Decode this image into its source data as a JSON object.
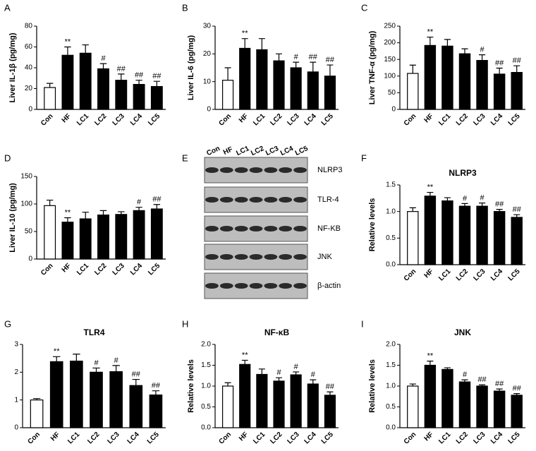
{
  "chart_data": [
    {
      "type": "bar",
      "panel": "A",
      "y_label": "Liver IL-1β (pg/mg)",
      "categories": [
        "Con",
        "HF",
        "LC1",
        "LC2",
        "LC3",
        "LC4",
        "LC5"
      ],
      "values": [
        21,
        52,
        54,
        39,
        28,
        24,
        22
      ],
      "errors": [
        4,
        8,
        8,
        5,
        6,
        4,
        5
      ],
      "annotations": [
        null,
        "**",
        null,
        "#",
        "##",
        "##",
        "##"
      ],
      "colors": [
        "#ffffff",
        "#000000",
        "#000000",
        "#000000",
        "#000000",
        "#000000",
        "#000000"
      ],
      "ylim": [
        0,
        80
      ],
      "yticks": [
        0,
        20,
        40,
        60,
        80
      ]
    },
    {
      "type": "bar",
      "panel": "B",
      "y_label": "Liver IL-6 (pg/mg)",
      "categories": [
        "Con",
        "HF",
        "LC1",
        "LC2",
        "LC3",
        "LC4",
        "LC5"
      ],
      "values": [
        10.5,
        22,
        21.5,
        17.5,
        15,
        13.5,
        12
      ],
      "errors": [
        4.5,
        3.5,
        4,
        2.5,
        2,
        3.5,
        4
      ],
      "annotations": [
        null,
        "**",
        null,
        null,
        "#",
        "##",
        "##"
      ],
      "colors": [
        "#ffffff",
        "#000000",
        "#000000",
        "#000000",
        "#000000",
        "#000000",
        "#000000"
      ],
      "ylim": [
        0,
        30
      ],
      "yticks": [
        0,
        10,
        20,
        30
      ]
    },
    {
      "type": "bar",
      "panel": "C",
      "y_label": "Liver TNF-α (pg/mg)",
      "categories": [
        "Con",
        "HF",
        "LC1",
        "LC2",
        "LC3",
        "LC4",
        "LC5"
      ],
      "values": [
        108,
        192,
        190,
        167,
        147,
        106,
        111
      ],
      "errors": [
        25,
        25,
        20,
        15,
        17,
        18,
        20
      ],
      "annotations": [
        null,
        "**",
        null,
        null,
        "#",
        "##",
        "##"
      ],
      "colors": [
        "#ffffff",
        "#000000",
        "#000000",
        "#000000",
        "#000000",
        "#000000",
        "#000000"
      ],
      "ylim": [
        0,
        250
      ],
      "yticks": [
        0,
        50,
        100,
        150,
        200,
        250
      ]
    },
    {
      "type": "bar",
      "panel": "D",
      "y_label": "Liver IL-10 (pg/mg)",
      "categories": [
        "Con",
        "HF",
        "LC1",
        "LC2",
        "LC3",
        "LC4",
        "LC5"
      ],
      "values": [
        97,
        67,
        73,
        80,
        81,
        88,
        91
      ],
      "errors": [
        10,
        8,
        12,
        8,
        5,
        6,
        8
      ],
      "annotations": [
        null,
        "**",
        null,
        null,
        null,
        "#",
        "##"
      ],
      "colors": [
        "#ffffff",
        "#000000",
        "#000000",
        "#000000",
        "#000000",
        "#000000",
        "#000000"
      ],
      "ylim": [
        0,
        150
      ],
      "yticks": [
        0,
        50,
        100,
        150
      ]
    },
    {
      "type": "blot",
      "panel": "E",
      "categories": [
        "Con",
        "HF",
        "LC1",
        "LC2",
        "LC3",
        "LC4",
        "LC5"
      ],
      "rows": [
        "NLRP3",
        "TLR-4",
        "NF-KB",
        "JNK",
        "β-actin"
      ]
    },
    {
      "type": "bar",
      "panel": "F",
      "title": "NLRP3",
      "y_label": "Relative levels",
      "categories": [
        "Con",
        "HF",
        "LC1",
        "LC2",
        "LC3",
        "LC4",
        "LC5"
      ],
      "values": [
        1.0,
        1.29,
        1.2,
        1.1,
        1.1,
        1.0,
        0.89
      ],
      "errors": [
        0.07,
        0.07,
        0.06,
        0.05,
        0.06,
        0.04,
        0.05
      ],
      "annotations": [
        null,
        "**",
        null,
        "#",
        "#",
        "##",
        "##"
      ],
      "colors": [
        "#ffffff",
        "#000000",
        "#000000",
        "#000000",
        "#000000",
        "#000000",
        "#000000"
      ],
      "ylim": [
        0,
        1.5
      ],
      "yticks": [
        {
          "value": 0,
          "label": "0.0"
        },
        0.5,
        {
          "value": 1,
          "label": "1.0"
        },
        1.5
      ]
    },
    {
      "type": "bar",
      "panel": "G",
      "title": "TLR4",
      "categories": [
        "Con",
        "HF",
        "LC1",
        "LC2",
        "LC3",
        "LC4",
        "LC5"
      ],
      "values": [
        1.0,
        2.38,
        2.4,
        2.0,
        2.02,
        1.52,
        1.18
      ],
      "errors": [
        0.05,
        0.18,
        0.25,
        0.15,
        0.22,
        0.22,
        0.15
      ],
      "annotations": [
        null,
        "**",
        null,
        "#",
        "#",
        "##",
        "##"
      ],
      "colors": [
        "#ffffff",
        "#000000",
        "#000000",
        "#000000",
        "#000000",
        "#000000",
        "#000000"
      ],
      "ylim": [
        0,
        3
      ],
      "yticks": [
        0,
        1,
        2,
        3
      ]
    },
    {
      "type": "bar",
      "panel": "H",
      "title": "NF-κB",
      "y_label": "Relative levels",
      "categories": [
        "Con",
        "HF",
        "LC1",
        "LC2",
        "LC3",
        "LC4",
        "LC5"
      ],
      "values": [
        1.0,
        1.52,
        1.28,
        1.12,
        1.27,
        1.05,
        0.78
      ],
      "errors": [
        0.08,
        0.1,
        0.13,
        0.08,
        0.07,
        0.1,
        0.08
      ],
      "annotations": [
        null,
        "**",
        null,
        "#",
        "#",
        "#",
        "##"
      ],
      "colors": [
        "#ffffff",
        "#000000",
        "#000000",
        "#000000",
        "#000000",
        "#000000",
        "#000000"
      ],
      "ylim": [
        0,
        2
      ],
      "yticks": [
        {
          "value": 0,
          "label": "0.0"
        },
        0.5,
        {
          "value": 1,
          "label": "1.0"
        },
        1.5,
        {
          "value": 2,
          "label": "2.0"
        }
      ]
    },
    {
      "type": "bar",
      "panel": "I",
      "title": "JNK",
      "y_label": "Relative levels",
      "categories": [
        "Con",
        "HF",
        "LC1",
        "LC2",
        "LC3",
        "LC4",
        "LC5"
      ],
      "values": [
        1.0,
        1.5,
        1.4,
        1.1,
        1.0,
        0.88,
        0.78
      ],
      "errors": [
        0.05,
        0.1,
        0.04,
        0.05,
        0.03,
        0.05,
        0.04
      ],
      "annotations": [
        null,
        "**",
        null,
        "#",
        "##",
        "##",
        "##"
      ],
      "colors": [
        "#ffffff",
        "#000000",
        "#000000",
        "#000000",
        "#000000",
        "#000000",
        "#000000"
      ],
      "ylim": [
        0,
        2
      ],
      "yticks": [
        {
          "value": 0,
          "label": "0.0"
        },
        0.5,
        {
          "value": 1,
          "label": "1.0"
        },
        1.5,
        {
          "value": 2,
          "label": "2.0"
        }
      ]
    }
  ]
}
